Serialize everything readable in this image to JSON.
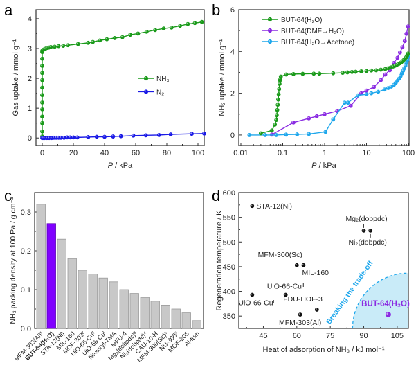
{
  "panels": {
    "a": {
      "letter": "a"
    },
    "b": {
      "letter": "b"
    },
    "c": {
      "letter": "c"
    },
    "d": {
      "letter": "d"
    }
  },
  "chart_data": [
    {
      "id": "a",
      "type": "line",
      "title": "",
      "xlabel": "P / kPa",
      "ylabel": "Gas uptake / mmol g⁻¹",
      "xlim": [
        -4,
        104
      ],
      "ylim": [
        -0.25,
        4.3
      ],
      "xticks": [
        0,
        20,
        40,
        60,
        80,
        100
      ],
      "yticks": [
        0,
        1,
        2,
        3,
        4
      ],
      "legend_position": "center-right",
      "series": [
        {
          "name": "NH₃",
          "color": "#1a9a1a",
          "x": [
            0,
            0,
            0,
            0,
            0,
            0,
            0,
            0,
            0,
            0,
            0,
            0,
            0,
            0,
            0.3,
            0.8,
            1.5,
            2.3,
            3.2,
            4.2,
            5.5,
            8,
            10.5,
            13.5,
            16.5,
            23,
            29.5,
            32.5,
            37,
            41.5,
            46.5,
            51.5,
            56.5,
            61.5,
            67,
            72.5,
            78,
            83,
            88.5,
            93.5,
            98,
            102.5
          ],
          "y": [
            0.05,
            0.22,
            0.5,
            0.72,
            0.96,
            1.19,
            1.44,
            1.69,
            1.94,
            2.18,
            2.42,
            2.66,
            2.88,
            2.92,
            2.94,
            2.96,
            2.98,
            3.0,
            3.02,
            3.03,
            3.05,
            3.06,
            3.08,
            3.09,
            3.11,
            3.15,
            3.19,
            3.22,
            3.27,
            3.31,
            3.35,
            3.38,
            3.46,
            3.5,
            3.56,
            3.62,
            3.67,
            3.7,
            3.76,
            3.82,
            3.85,
            3.89
          ]
        },
        {
          "name": "N₂",
          "color": "#1a1ae6",
          "x": [
            0,
            0.5,
            1.5,
            3,
            4.5,
            6,
            7.5,
            9,
            10.5,
            12,
            14,
            16,
            18,
            20,
            22.5,
            29.5,
            35,
            40,
            45.5,
            50.5,
            58.5,
            66.5,
            75,
            82.5,
            96,
            104
          ],
          "y": [
            0.0,
            0.0,
            0.0,
            0.0,
            0.0,
            0.0,
            0.01,
            0.01,
            0.01,
            0.01,
            0.01,
            0.02,
            0.02,
            0.02,
            0.02,
            0.03,
            0.04,
            0.04,
            0.05,
            0.06,
            0.08,
            0.09,
            0.1,
            0.12,
            0.14,
            0.15
          ]
        }
      ]
    },
    {
      "id": "b",
      "type": "line",
      "title": "",
      "xlabel": "P / kPa",
      "ylabel": "NH₃ uptake / mmol g⁻¹",
      "xscale": "log",
      "xlim": [
        0.01,
        100
      ],
      "ylim": [
        -0.5,
        6
      ],
      "xticks": [
        0.01,
        0.1,
        1,
        10,
        100
      ],
      "xtick_labels": [
        "0.01",
        "0.1",
        "1",
        "10",
        "100"
      ],
      "yticks": [
        0,
        2,
        4,
        6
      ],
      "legend_position": "top-left",
      "series": [
        {
          "name": "BUT-64(H₂O)",
          "color": "#1a9a1a",
          "x": [
            0.03,
            0.055,
            0.065,
            0.07,
            0.072,
            0.074,
            0.076,
            0.078,
            0.08,
            0.082,
            0.084,
            0.086,
            0.088,
            0.09,
            0.12,
            0.18,
            0.3,
            0.55,
            0.75,
            1.6,
            2.7,
            3.5,
            4.5,
            5.5,
            7.5,
            10,
            13,
            17,
            22,
            28,
            33,
            38,
            43,
            48,
            53,
            58,
            63,
            68,
            73,
            78,
            83,
            88,
            93,
            98
          ],
          "y": [
            0.08,
            0.22,
            0.5,
            0.72,
            0.95,
            1.2,
            1.45,
            1.7,
            1.95,
            2.2,
            2.45,
            2.62,
            2.68,
            2.8,
            2.9,
            2.92,
            2.93,
            2.94,
            2.94,
            2.96,
            2.98,
            3.0,
            3.02,
            3.03,
            3.05,
            3.07,
            3.09,
            3.1,
            3.13,
            3.16,
            3.2,
            3.24,
            3.28,
            3.32,
            3.36,
            3.4,
            3.44,
            3.48,
            3.54,
            3.6,
            3.66,
            3.72,
            3.8,
            3.9
          ]
        },
        {
          "name": "BUT-64(DMF→H₂O)",
          "color": "#8a2be2",
          "x": [
            0.055,
            0.18,
            0.42,
            0.65,
            1.0,
            2.0,
            4.2,
            7.5,
            10,
            15,
            22,
            28,
            36,
            45,
            55,
            63,
            72,
            82,
            90,
            98
          ],
          "y": [
            0.02,
            0.6,
            0.8,
            0.9,
            1.0,
            1.15,
            1.4,
            2.0,
            2.13,
            2.3,
            2.63,
            2.9,
            3.1,
            3.45,
            3.7,
            3.95,
            4.2,
            4.5,
            4.85,
            5.2
          ]
        },
        {
          "name": "BUT-64(H₂O→Acetone)",
          "color": "#1ea7ec",
          "x": [
            0.016,
            0.038,
            0.07,
            0.12,
            0.22,
            0.42,
            1.05,
            1.6,
            3.0,
            3.6,
            6.2,
            10,
            13,
            19,
            27,
            33,
            39,
            45,
            50,
            55,
            60,
            65,
            70,
            75,
            80,
            85,
            90,
            95,
            99
          ],
          "y": [
            0.0,
            0.0,
            0.0,
            0.02,
            0.03,
            0.05,
            0.15,
            0.75,
            1.55,
            1.55,
            1.9,
            1.95,
            2.0,
            2.07,
            2.18,
            2.25,
            2.32,
            2.4,
            2.5,
            2.6,
            2.7,
            2.82,
            2.95,
            3.08,
            3.2,
            3.32,
            3.45,
            3.6,
            3.75
          ]
        }
      ]
    },
    {
      "id": "c",
      "type": "bar",
      "title": "",
      "xlabel": "",
      "ylabel": "NH₃ packing density at 100 Pa / g cm⁻³",
      "ylim": [
        0,
        0.35
      ],
      "yticks": [
        0.0,
        0.1,
        0.2,
        0.3
      ],
      "ytick_labels": [
        "0.0",
        "0.1",
        "0.2",
        "0.3"
      ],
      "categories": [
        "MFM-303(Al)¹",
        "BUT-64(H₂O)",
        "STA-12(Ni)",
        "MIL-160",
        "MOF-303²",
        "UiO-66-Cuᴵᴵ",
        "UiO-66-Cuᴵ",
        "Ni-acryl-TMA",
        "MFU-4",
        "Mg₂(dobpdc)³",
        "Ni₂(dobpdc)⁴",
        "CAU-10-H",
        "MFM-300(Sc)⁵",
        "NU-300⁵",
        "MOF-205",
        "Al-fum"
      ],
      "values": [
        0.32,
        0.27,
        0.23,
        0.18,
        0.15,
        0.14,
        0.13,
        0.12,
        0.1,
        0.09,
        0.08,
        0.07,
        0.06,
        0.05,
        0.04,
        0.02
      ],
      "highlight_index": 1,
      "bar_color": "#c8c8c8",
      "highlight_color": "#8000ff"
    },
    {
      "id": "d",
      "type": "scatter",
      "title": "",
      "xlabel": "Heat of adsorption of NH₃ / kJ mol⁻¹",
      "ylabel": "Regeneration temperature / K",
      "xlim": [
        34,
        110
      ],
      "ylim": [
        325,
        600
      ],
      "xticks": [
        45,
        60,
        75,
        90,
        105
      ],
      "yticks": [
        350,
        400,
        450,
        500,
        550,
        600
      ],
      "points": [
        {
          "label": "STA-12(Ni)",
          "x": 40,
          "y": 573,
          "color": "#000000",
          "label_pos": "right"
        },
        {
          "label": "Mg₂(dobpdc)",
          "x": 90,
          "y": 523,
          "color": "#000000",
          "label_pos": "above",
          "arrow": "up"
        },
        {
          "label": "Ni₂(dobpdc)",
          "x": 93,
          "y": 523,
          "color": "#000000",
          "label_pos": "below",
          "arrow": "down"
        },
        {
          "label": "MFM-300(Sc)",
          "x": 60,
          "y": 453,
          "color": "#000000",
          "label_pos": "above-left"
        },
        {
          "label": "MIL-160",
          "x": 63,
          "y": 453,
          "color": "#000000",
          "label_pos": "below-right"
        },
        {
          "label": "UiO-66-Cuᴵᴵ",
          "x": 55,
          "y": 393,
          "color": "#000000",
          "label_pos": "above"
        },
        {
          "label": "UiO-66-Cuᴵ",
          "x": 40,
          "y": 393,
          "color": "#000000",
          "label_pos": "below"
        },
        {
          "label": "FDU-HOF-3",
          "x": 69,
          "y": 363,
          "color": "#000000",
          "label_pos": "above-left"
        },
        {
          "label": "MFM-303(Al)",
          "x": 61.5,
          "y": 353,
          "color": "#000000",
          "label_pos": "below"
        },
        {
          "label": "BUT-64(H₂O)",
          "x": 101,
          "y": 353,
          "color": "#8a2be2",
          "label_pos": "above",
          "highlight": true
        }
      ],
      "annotation": {
        "text": "Breaking the trade-off",
        "color": "#1ea7ec",
        "region_fill": "#c9ebf8"
      }
    }
  ]
}
